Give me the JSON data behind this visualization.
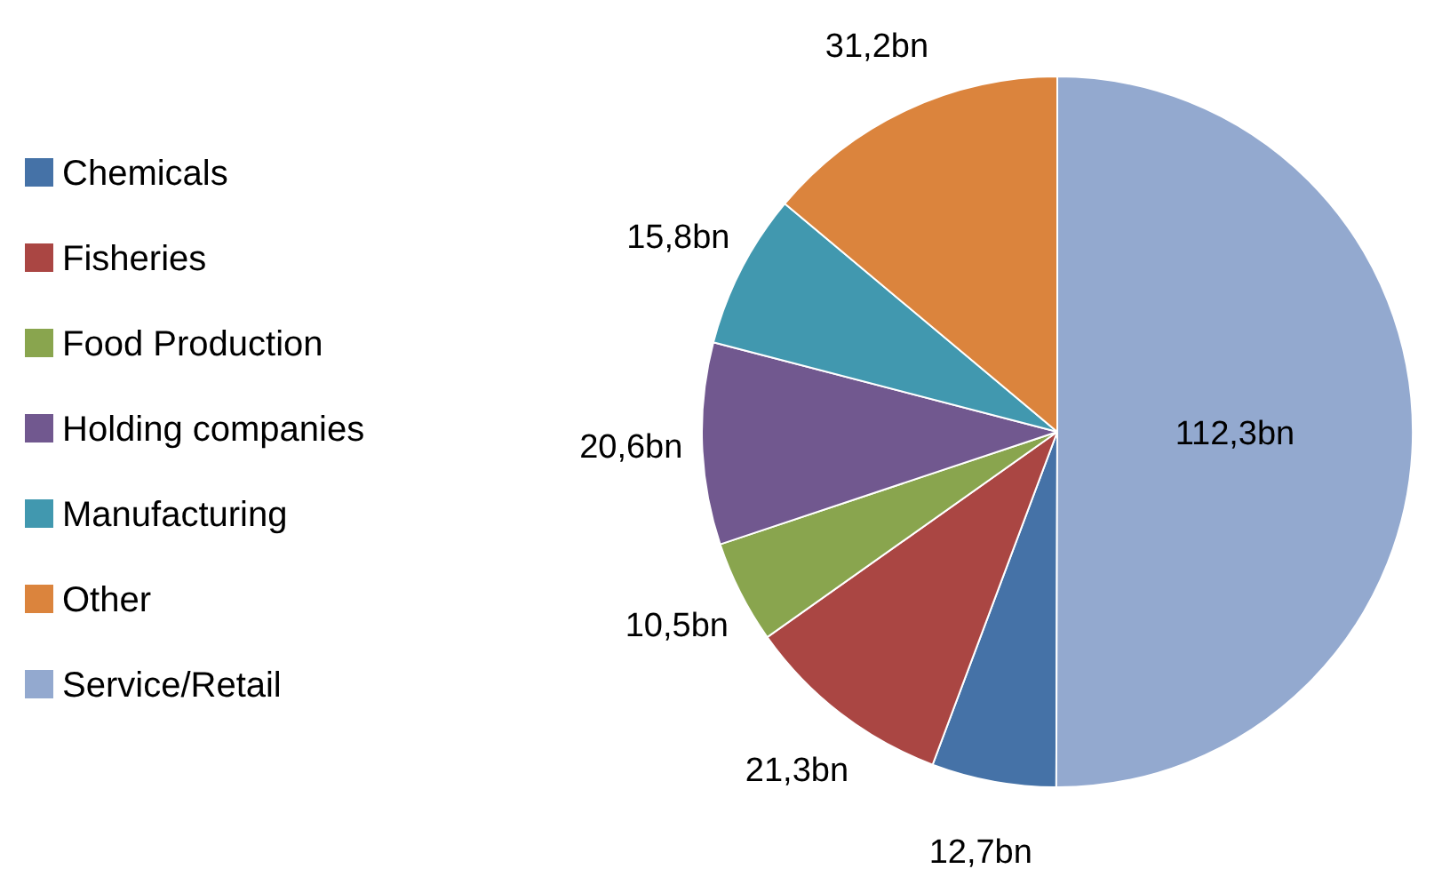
{
  "chart_data": {
    "type": "pie",
    "categories": [
      "Chemicals",
      "Fisheries",
      "Food Production",
      "Holding companies",
      "Manufacturing",
      "Other",
      "Service/Retail"
    ],
    "values": [
      12.7,
      21.3,
      10.5,
      20.6,
      15.8,
      31.2,
      112.3
    ],
    "colors": [
      "#4572a7",
      "#aa4643",
      "#89a54e",
      "#71588f",
      "#4198af",
      "#db843d",
      "#93a9cf"
    ],
    "value_labels": [
      "12,7bn",
      "21,3bn",
      "10,5bn",
      "20,6bn",
      "15,8bn",
      "31,2bn",
      "112,3bn"
    ],
    "legend": "left"
  }
}
